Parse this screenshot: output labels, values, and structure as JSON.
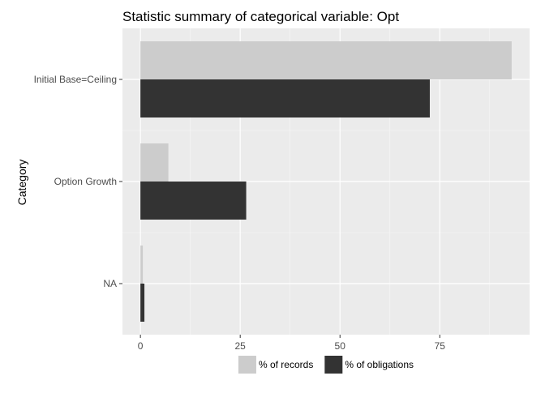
{
  "chart_data": {
    "type": "bar",
    "orientation": "horizontal",
    "title": "Statistic summary of categorical variable:  Opt",
    "xlabel": "",
    "ylabel": "Category",
    "categories": [
      "Initial Base=Ceiling",
      "Option Growth",
      "NA"
    ],
    "series": [
      {
        "name": "% of records",
        "values": [
          93.0,
          7.0,
          0.6
        ],
        "color": "#cccccc"
      },
      {
        "name": "% of obligations",
        "values": [
          72.5,
          26.5,
          1.0
        ],
        "color": "#333333"
      }
    ],
    "xlim": [
      -4.5,
      97.5
    ],
    "xticks": [
      0,
      25,
      50,
      75
    ],
    "grid": true,
    "panel_background": "#ebebeb",
    "legend_position": "bottom"
  }
}
